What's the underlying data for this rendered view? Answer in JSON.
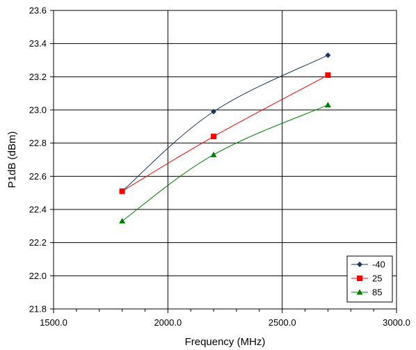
{
  "chart_data": {
    "type": "line",
    "xlabel": "Frequency (MHz)",
    "ylabel": "P1dB (dBm)",
    "xlim": [
      1500,
      3000
    ],
    "ylim": [
      21.8,
      23.6
    ],
    "x_ticks": [
      1500,
      2000,
      2500,
      3000
    ],
    "x_tick_labels": [
      "1500.0",
      "2000.0",
      "2500.0",
      "3000.0"
    ],
    "y_ticks": [
      21.8,
      22.0,
      22.2,
      22.4,
      22.6,
      22.8,
      23.0,
      23.2,
      23.4,
      23.6
    ],
    "y_tick_labels": [
      "21.8",
      "22.0",
      "22.2",
      "22.4",
      "22.6",
      "22.8",
      "23.0",
      "23.2",
      "23.4",
      "23.6"
    ],
    "x_minor_step": 100,
    "grid": "major",
    "legend_position": "bottom-right",
    "series": [
      {
        "name": "-40",
        "color": "#17375e",
        "marker": "diamond",
        "x": [
          1800,
          2200,
          2700
        ],
        "y": [
          22.51,
          22.99,
          23.33
        ]
      },
      {
        "name": "25",
        "color": "#ff0000",
        "marker": "square",
        "x": [
          1800,
          2200,
          2700
        ],
        "y": [
          22.51,
          22.84,
          23.21
        ]
      },
      {
        "name": "85",
        "color": "#008000",
        "marker": "triangle",
        "x": [
          1800,
          2200,
          2700
        ],
        "y": [
          22.33,
          22.73,
          23.03
        ]
      }
    ]
  }
}
